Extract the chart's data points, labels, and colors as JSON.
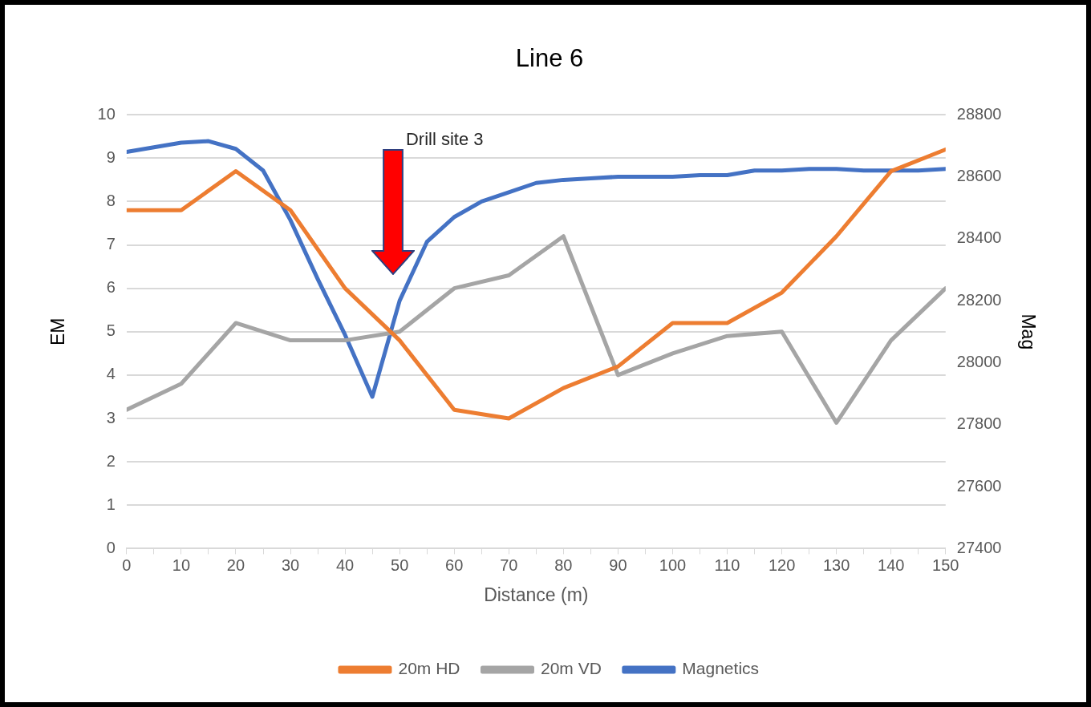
{
  "chart_data": {
    "type": "line",
    "title": "Line 6",
    "xlabel": "Distance (m)",
    "ylabel": "EM",
    "y2label": "Mag",
    "xlim": [
      0,
      150
    ],
    "xticks": [
      0,
      {
        "value": 5,
        "label": null
      },
      10,
      {
        "value": 15,
        "label": null
      },
      20,
      {
        "value": 25,
        "label": null
      },
      30,
      {
        "value": 35,
        "label": null
      },
      40,
      {
        "value": 45,
        "label": null
      },
      50,
      {
        "value": 55,
        "label": null
      },
      60,
      {
        "value": 65,
        "label": null
      },
      70,
      {
        "value": 75,
        "label": null
      },
      80,
      {
        "value": 85,
        "label": null
      },
      90,
      {
        "value": 95,
        "label": null
      },
      100,
      {
        "value": 105,
        "label": null
      },
      110,
      {
        "value": 115,
        "label": null
      },
      120,
      {
        "value": 125,
        "label": null
      },
      130,
      {
        "value": 135,
        "label": null
      },
      140,
      {
        "value": 145,
        "label": null
      },
      150
    ],
    "ylim": [
      0,
      10
    ],
    "yticks": [
      0,
      1,
      2,
      3,
      4,
      5,
      6,
      7,
      8,
      9,
      10
    ],
    "y2lim": [
      27400,
      28800
    ],
    "y2ticks": [
      27400,
      27600,
      27800,
      28000,
      28200,
      28400,
      28600,
      28800
    ],
    "grid": "y",
    "legend": "bottom",
    "marker": "none",
    "line_style": "solid",
    "series": [
      {
        "name": "20m HD",
        "color": "#ed7d31",
        "x": [
          0,
          10,
          20,
          30,
          40,
          50,
          60,
          70,
          80,
          90,
          100,
          110,
          120,
          130,
          140,
          150
        ],
        "values": [
          7.8,
          7.8,
          8.7,
          7.8,
          6.0,
          4.8,
          3.2,
          3.0,
          3.7,
          4.2,
          5.2,
          5.2,
          5.9,
          7.2,
          8.7,
          9.2
        ]
      },
      {
        "name": "20m VD",
        "color": "#a5a5a5",
        "x": [
          0,
          10,
          20,
          30,
          40,
          50,
          60,
          70,
          80,
          90,
          100,
          110,
          120,
          130,
          140,
          150
        ],
        "values": [
          3.2,
          3.8,
          5.2,
          4.8,
          4.8,
          5.0,
          6.0,
          6.3,
          7.2,
          4.0,
          4.5,
          4.9,
          5.0,
          2.9,
          4.8,
          6.0
        ]
      },
      {
        "name": "Magnetics",
        "color": "#4472c4",
        "axis": "y2",
        "x": [
          0,
          5,
          10,
          15,
          20,
          25,
          30,
          35,
          40,
          45,
          50,
          55,
          60,
          65,
          70,
          75,
          80,
          85,
          90,
          95,
          100,
          105,
          110,
          115,
          120,
          125,
          130,
          135,
          140,
          145,
          150
        ],
        "values": [
          28680,
          28695,
          28710,
          28715,
          28690,
          28620,
          28460,
          28270,
          28090,
          27890,
          28200,
          28390,
          28470,
          28520,
          28550,
          28580,
          28590,
          28595,
          28600,
          28600,
          28600,
          28605,
          28605,
          28620,
          28620,
          28625,
          28625,
          28620,
          28620,
          28620,
          28625
        ]
      }
    ],
    "annotations": [
      "Drill site 3"
    ]
  }
}
